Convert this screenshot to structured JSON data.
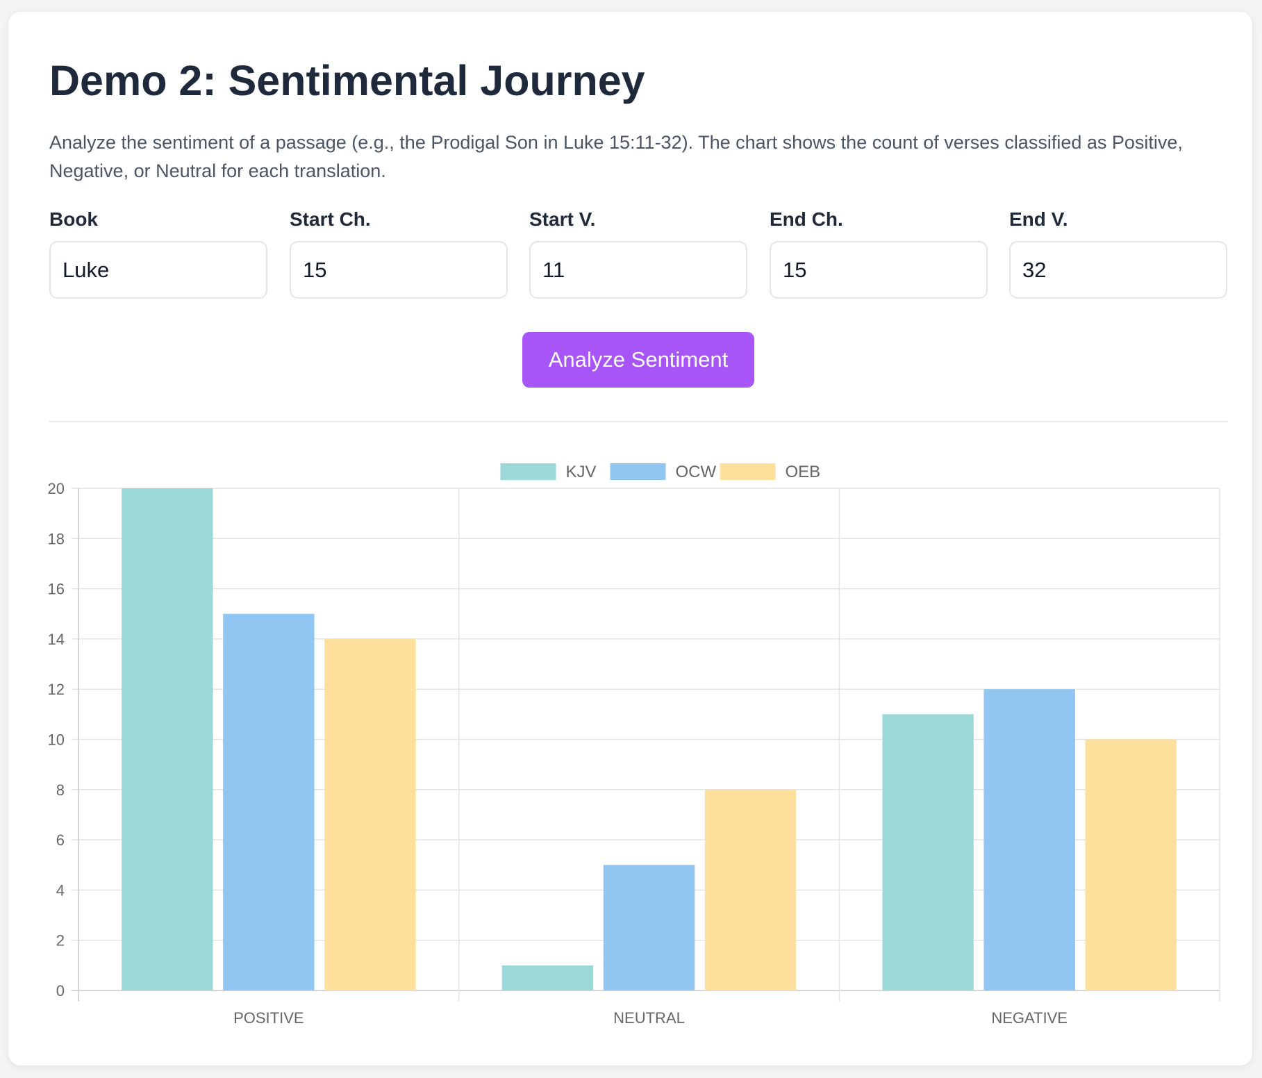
{
  "title": "Demo 2: Sentimental Journey",
  "description": "Analyze the sentiment of a passage (e.g., the Prodigal Son in Luke 15:11-32). The chart shows the count of verses classified as Positive, Negative, or Neutral for each translation.",
  "form": {
    "book": {
      "label": "Book",
      "value": "Luke"
    },
    "start_ch": {
      "label": "Start Ch.",
      "value": "15"
    },
    "start_v": {
      "label": "Start V.",
      "value": "11"
    },
    "end_ch": {
      "label": "End Ch.",
      "value": "15"
    },
    "end_v": {
      "label": "End V.",
      "value": "32"
    }
  },
  "analyze_button": "Analyze Sentiment",
  "chart_data": {
    "type": "bar",
    "categories": [
      "POSITIVE",
      "NEUTRAL",
      "NEGATIVE"
    ],
    "series": [
      {
        "name": "KJV",
        "values": [
          20,
          1,
          11
        ],
        "color": "#9ad9d7"
      },
      {
        "name": "OCW",
        "values": [
          15,
          5,
          12
        ],
        "color": "#90c6f1"
      },
      {
        "name": "OEB",
        "values": [
          14,
          8,
          10
        ],
        "color": "#fee09c"
      }
    ],
    "ylim": [
      0,
      20
    ],
    "yticks": [
      0,
      2,
      4,
      6,
      8,
      10,
      12,
      14,
      16,
      18,
      20
    ],
    "grid": true,
    "legend": "top-center"
  }
}
